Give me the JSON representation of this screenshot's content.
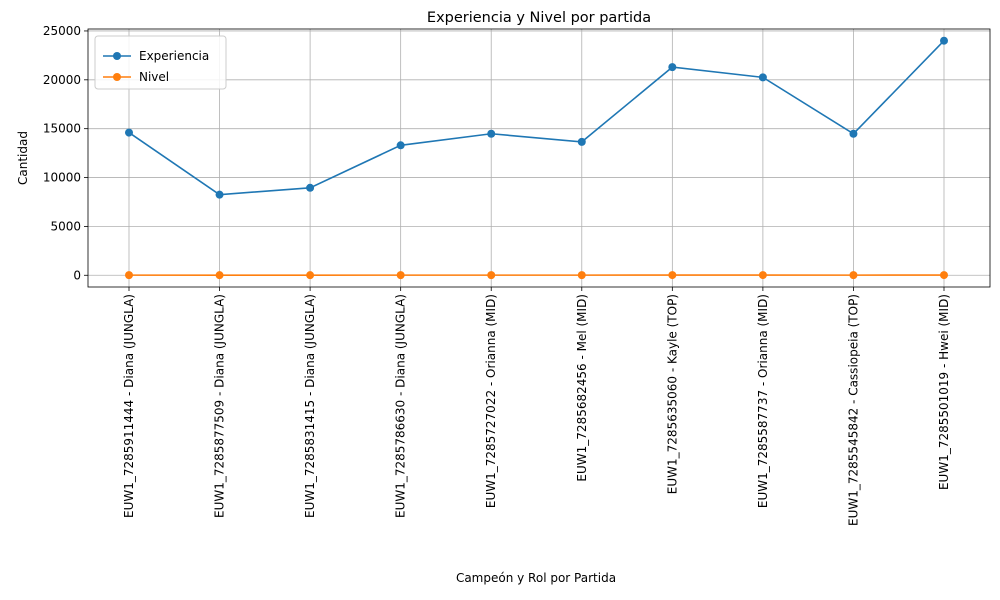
{
  "chart_data": {
    "type": "line",
    "title": "Experiencia y Nivel por partida",
    "xlabel": "Campeón y Rol por Partida",
    "ylabel": "Cantidad",
    "ylim": [
      -1200,
      25200
    ],
    "yticks": [
      0,
      5000,
      10000,
      15000,
      20000,
      25000
    ],
    "grid": true,
    "legend_position": "top-left",
    "categories": [
      "EUW1_7285911444 - Diana (JUNGLA)",
      "EUW1_7285877509 - Diana (JUNGLA)",
      "EUW1_7285831415 - Diana (JUNGLA)",
      "EUW1_7285786630 - Diana (JUNGLA)",
      "EUW1_7285727022 - Orianna (MID)",
      "EUW1_7285682456 - Mel (MID)",
      "EUW1_7285635060 - Kayle (TOP)",
      "EUW1_7285587737 - Orianna (MID)",
      "EUW1_7285545842 - Cassiopeia (TOP)",
      "EUW1_7285501019 - Hwei (MID)"
    ],
    "series": [
      {
        "name": "Experiencia",
        "color": "#1f77b4",
        "values": [
          14600,
          8250,
          8950,
          13300,
          14480,
          13650,
          21300,
          20250,
          14480,
          24000
        ]
      },
      {
        "name": "Nivel",
        "color": "#ff7f0e",
        "values": [
          16,
          13,
          13,
          15,
          16,
          16,
          18,
          18,
          16,
          18
        ]
      }
    ]
  }
}
